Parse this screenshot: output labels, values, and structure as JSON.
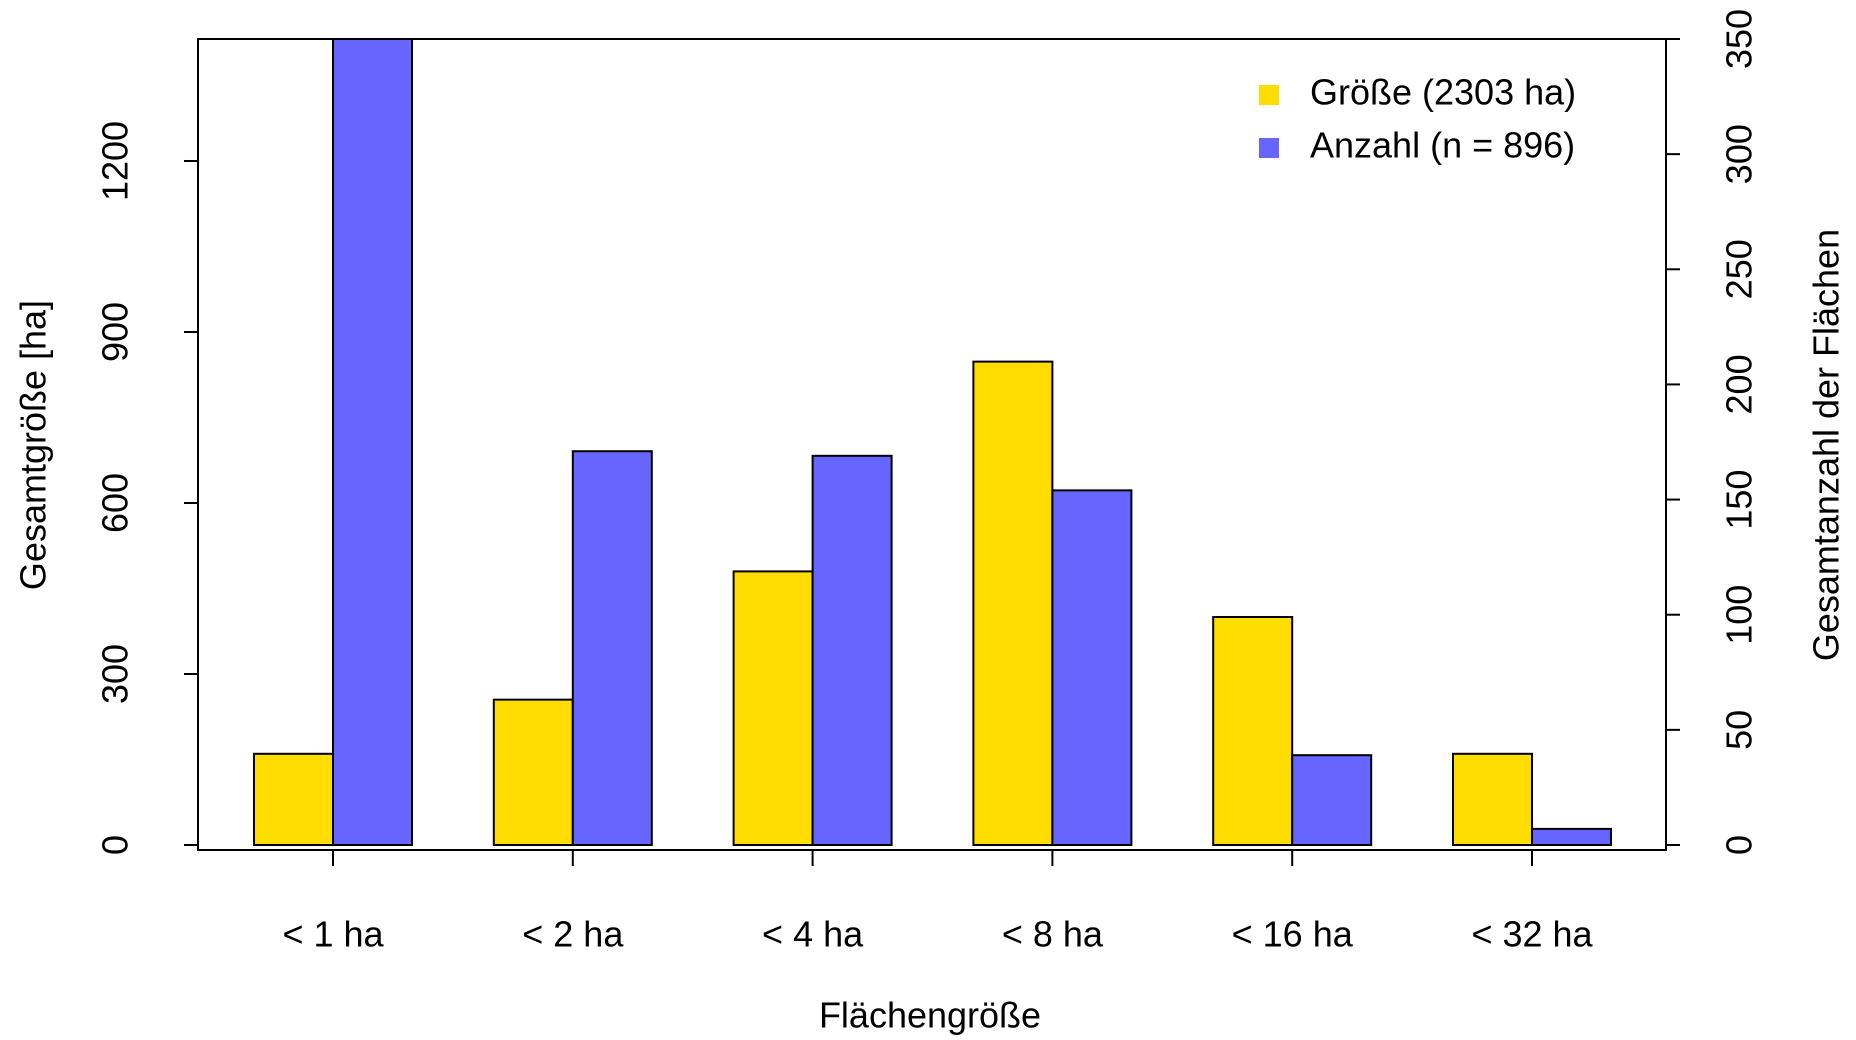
{
  "chart_data": {
    "type": "bar",
    "xlabel": "Flächengröße",
    "ylabel": "Gesamtgröße [ha]",
    "y2label": "Gesamtanzahl der Flächen",
    "categories": [
      "< 1 ha",
      "< 2 ha",
      "< 4 ha",
      "< 8 ha",
      "< 16 ha",
      "< 32 ha"
    ],
    "series": [
      {
        "name": "Größe (2303 ha)",
        "color": "#FFDD00",
        "values": [
          160,
          255,
          480,
          848,
          400,
          160
        ]
      },
      {
        "name": "Anzahl (n = 896)",
        "color": "#6666FF",
        "axis": "y2",
        "values": [
          356,
          171,
          169,
          154,
          39,
          7
        ]
      }
    ],
    "ylim": [
      0,
      1414
    ],
    "yticks": [
      0,
      300,
      600,
      900,
      1200
    ],
    "y2lim": [
      0,
      350
    ],
    "y2ticks": [
      0,
      50,
      100,
      150,
      200,
      250,
      300,
      350
    ],
    "legend": "top-right"
  }
}
